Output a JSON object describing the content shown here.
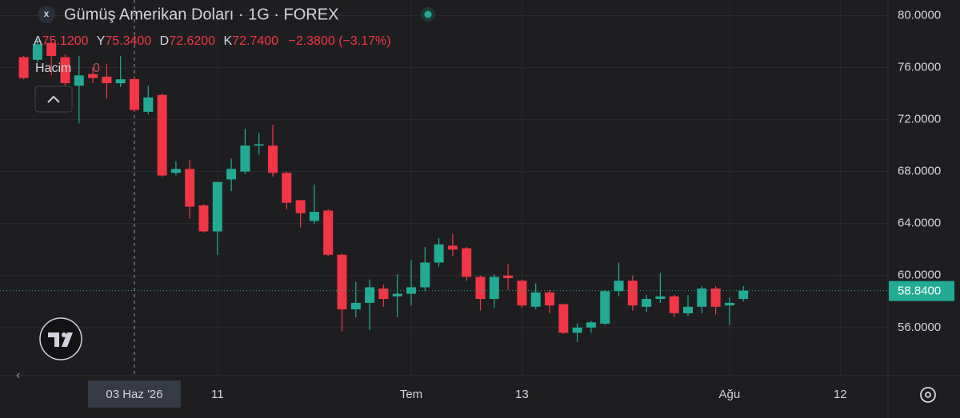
{
  "chart_data": {
    "type": "candlestick",
    "title": "Gümüş Amerikan Doları · 1G · FOREX",
    "legend": {
      "open_label": "A",
      "open": "75.1200",
      "high_label": "Y",
      "high": "75.3400",
      "low_label": "D",
      "low": "72.6200",
      "close_label": "K",
      "close": "72.7400",
      "change": "−2.3800 (−3.17%)"
    },
    "volume_label": "Hacim",
    "volume_value": "0",
    "last_label": "58.8400",
    "crosshair": 8,
    "up_color": "#22ab94",
    "down_color": "#f23645",
    "categories": [
      null,
      null,
      null,
      null,
      null,
      null,
      null,
      null,
      "03 Haz '26",
      null,
      null,
      null,
      null,
      null,
      "11",
      null,
      null,
      null,
      null,
      null,
      null,
      null,
      null,
      null,
      null,
      null,
      null,
      null,
      "Tem",
      null,
      null,
      null,
      null,
      null,
      null,
      null,
      "13",
      null,
      null,
      null,
      null,
      null,
      null,
      null,
      null,
      null,
      null,
      null,
      null,
      null,
      null,
      "Ağu",
      null,
      null,
      null,
      null,
      null,
      null,
      null,
      "12"
    ],
    "open": [
      76.8,
      76.6,
      77.9,
      76.8,
      74.6,
      75.5,
      75.3,
      74.8,
      75.12,
      72.6,
      73.9,
      67.9,
      68.2,
      65.4,
      63.4,
      67.4,
      68.0,
      70.0,
      70.0,
      67.9,
      65.8,
      64.2,
      65.0,
      61.6,
      57.4,
      57.9,
      59.0,
      58.4,
      58.6,
      59.1,
      61.0,
      62.3,
      62.1,
      59.9,
      58.2,
      60.0,
      59.6,
      57.6,
      58.7,
      57.8,
      55.6,
      56.0,
      56.3,
      58.8,
      59.6,
      57.6,
      58.2,
      58.4,
      57.1,
      57.6,
      59.0,
      57.7,
      58.2,
      null,
      null,
      null,
      null,
      null,
      null,
      null
    ],
    "high": [
      76.9,
      78.2,
      78.1,
      77.0,
      76.9,
      76.0,
      76.3,
      76.9,
      75.34,
      74.6,
      74.0,
      68.8,
      68.9,
      65.5,
      67.2,
      69.0,
      71.3,
      71.0,
      71.6,
      68.0,
      65.8,
      67.0,
      65.1,
      61.7,
      59.5,
      59.7,
      59.3,
      60.1,
      61.2,
      62.2,
      62.9,
      63.2,
      62.2,
      60.0,
      60.1,
      60.9,
      59.7,
      59.4,
      58.9,
      57.8,
      56.3,
      56.5,
      58.9,
      61.0,
      60.0,
      58.5,
      60.2,
      58.5,
      58.5,
      59.2,
      59.2,
      58.3,
      59.2,
      null,
      null,
      null,
      null,
      null,
      null,
      null
    ],
    "low": [
      75.1,
      76.4,
      75.4,
      74.0,
      71.7,
      74.8,
      73.6,
      74.5,
      72.62,
      72.4,
      67.6,
      67.7,
      64.4,
      63.3,
      61.6,
      66.5,
      67.8,
      69.3,
      67.6,
      65.1,
      63.7,
      64.0,
      61.5,
      55.7,
      56.8,
      55.8,
      57.6,
      56.8,
      57.7,
      58.8,
      60.7,
      61.5,
      59.6,
      57.3,
      57.5,
      58.9,
      57.5,
      57.4,
      57.1,
      55.5,
      54.9,
      55.6,
      56.2,
      58.4,
      57.3,
      57.2,
      57.9,
      56.8,
      56.9,
      57.1,
      57.0,
      56.2,
      58.0,
      null,
      null,
      null,
      null,
      null,
      null,
      null
    ],
    "close": [
      75.2,
      77.8,
      76.9,
      74.8,
      75.4,
      75.2,
      74.8,
      75.1,
      72.74,
      73.7,
      67.7,
      68.2,
      65.3,
      63.4,
      67.2,
      68.2,
      70.0,
      70.1,
      67.9,
      65.6,
      64.8,
      64.9,
      61.6,
      57.4,
      57.9,
      59.1,
      58.2,
      58.6,
      59.1,
      61.0,
      62.4,
      62.0,
      59.9,
      58.2,
      59.9,
      59.8,
      57.7,
      58.7,
      57.7,
      55.6,
      56.0,
      56.4,
      58.8,
      59.6,
      57.7,
      58.2,
      58.4,
      57.1,
      57.6,
      59.0,
      57.6,
      57.9,
      58.84,
      null,
      null,
      null,
      null,
      null,
      null,
      null
    ],
    "ylim": [
      52.3,
      81.2
    ],
    "yticks": [
      {
        "value": 56,
        "label": "56.0000"
      },
      {
        "value": 60,
        "label": "60.0000"
      },
      {
        "value": 64,
        "label": "64.0000"
      },
      {
        "value": 68,
        "label": "68.0000"
      },
      {
        "value": 72,
        "label": "72.0000"
      },
      {
        "value": 76,
        "label": "76.0000"
      },
      {
        "value": 80,
        "label": "80.0000"
      }
    ],
    "grid": true
  }
}
